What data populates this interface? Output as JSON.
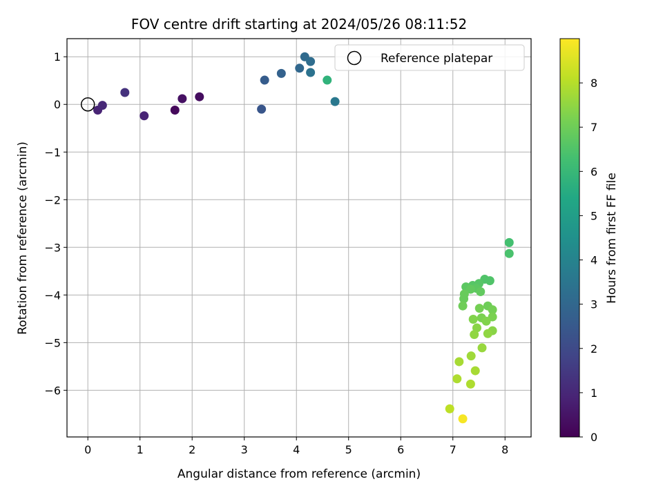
{
  "chart_data": {
    "type": "scatter",
    "title": "FOV centre drift starting at 2024/05/26 08:11:52",
    "xlabel": "Angular distance from reference (arcmin)",
    "ylabel": "Rotation from reference (arcmin)",
    "xlim": [
      -0.4,
      8.5
    ],
    "ylim": [
      -6.98,
      1.38
    ],
    "xticks": [
      0,
      1,
      2,
      3,
      4,
      5,
      6,
      7,
      8
    ],
    "yticks": [
      1,
      0,
      -1,
      -2,
      -3,
      -4,
      -5,
      -6
    ],
    "grid": true,
    "legend": {
      "position": "top-right",
      "entries": [
        "Reference platepar"
      ]
    },
    "reference_point": {
      "x": 0,
      "y": 0
    },
    "colorbar": {
      "label": "Hours from first FF file",
      "range": [
        0,
        9
      ],
      "ticks": [
        0,
        1,
        2,
        3,
        4,
        5,
        6,
        7,
        8
      ],
      "colormap": "viridis"
    },
    "points": [
      {
        "x": 0.19,
        "y": -0.12,
        "t": 0.9
      },
      {
        "x": 0.28,
        "y": -0.02,
        "t": 1.0
      },
      {
        "x": 0.71,
        "y": 0.25,
        "t": 1.3
      },
      {
        "x": 1.08,
        "y": -0.24,
        "t": 0.9
      },
      {
        "x": 1.67,
        "y": -0.12,
        "t": 0.2
      },
      {
        "x": 1.81,
        "y": 0.12,
        "t": 0.4
      },
      {
        "x": 2.14,
        "y": 0.16,
        "t": 0.3
      },
      {
        "x": 3.33,
        "y": -0.1,
        "t": 2.4
      },
      {
        "x": 3.39,
        "y": 0.51,
        "t": 2.6
      },
      {
        "x": 3.71,
        "y": 0.65,
        "t": 2.8
      },
      {
        "x": 4.06,
        "y": 0.76,
        "t": 3.0
      },
      {
        "x": 4.16,
        "y": 1.0,
        "t": 3.1
      },
      {
        "x": 4.27,
        "y": 0.9,
        "t": 3.2
      },
      {
        "x": 4.27,
        "y": 0.67,
        "t": 3.4
      },
      {
        "x": 4.59,
        "y": 0.51,
        "t": 5.8
      },
      {
        "x": 4.74,
        "y": 0.06,
        "t": 3.6
      },
      {
        "x": 8.08,
        "y": -2.9,
        "t": 6.3
      },
      {
        "x": 8.08,
        "y": -3.13,
        "t": 6.4
      },
      {
        "x": 7.61,
        "y": -3.67,
        "t": 6.5
      },
      {
        "x": 7.71,
        "y": -3.7,
        "t": 6.5
      },
      {
        "x": 7.5,
        "y": -3.76,
        "t": 6.6
      },
      {
        "x": 7.38,
        "y": -3.8,
        "t": 6.6
      },
      {
        "x": 7.25,
        "y": -3.83,
        "t": 6.7
      },
      {
        "x": 7.45,
        "y": -3.86,
        "t": 6.7
      },
      {
        "x": 7.34,
        "y": -3.88,
        "t": 6.8
      },
      {
        "x": 7.53,
        "y": -3.93,
        "t": 6.8
      },
      {
        "x": 7.22,
        "y": -3.98,
        "t": 6.9
      },
      {
        "x": 7.21,
        "y": -4.08,
        "t": 6.9
      },
      {
        "x": 7.19,
        "y": -4.23,
        "t": 7.0
      },
      {
        "x": 7.67,
        "y": -4.23,
        "t": 7.0
      },
      {
        "x": 7.51,
        "y": -4.28,
        "t": 7.1
      },
      {
        "x": 7.76,
        "y": -4.31,
        "t": 7.1
      },
      {
        "x": 7.76,
        "y": -4.46,
        "t": 7.2
      },
      {
        "x": 7.55,
        "y": -4.48,
        "t": 7.2
      },
      {
        "x": 7.39,
        "y": -4.51,
        "t": 7.3
      },
      {
        "x": 7.64,
        "y": -4.55,
        "t": 7.3
      },
      {
        "x": 7.46,
        "y": -4.69,
        "t": 7.4
      },
      {
        "x": 7.76,
        "y": -4.75,
        "t": 7.4
      },
      {
        "x": 7.67,
        "y": -4.81,
        "t": 7.5
      },
      {
        "x": 7.41,
        "y": -4.83,
        "t": 7.5
      },
      {
        "x": 7.56,
        "y": -5.11,
        "t": 7.6
      },
      {
        "x": 7.35,
        "y": -5.28,
        "t": 7.7
      },
      {
        "x": 7.12,
        "y": -5.4,
        "t": 7.8
      },
      {
        "x": 7.43,
        "y": -5.59,
        "t": 7.8
      },
      {
        "x": 7.08,
        "y": -5.76,
        "t": 7.9
      },
      {
        "x": 7.34,
        "y": -5.87,
        "t": 7.9
      },
      {
        "x": 6.94,
        "y": -6.39,
        "t": 8.1
      },
      {
        "x": 7.19,
        "y": -6.6,
        "t": 8.9
      }
    ]
  }
}
